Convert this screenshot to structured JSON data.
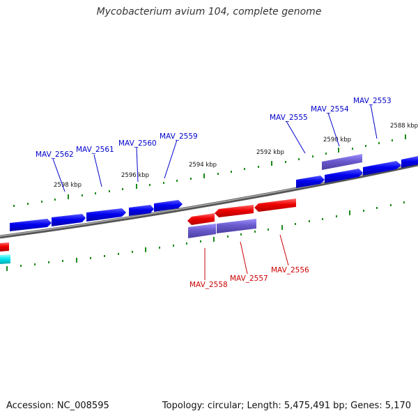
{
  "title": "Mycobacterium avium 104, complete genome",
  "footer": {
    "accession": "Accession: NC_008595",
    "summary": "Topology: circular; Length: 5,475,491 bp; Genes: 5,170"
  },
  "colors": {
    "forward_gene": "#0000ee",
    "reverse_gene": "#ee0000",
    "pseudo_gene": "#6a5acd",
    "other_feature": "#00e5ee",
    "backbone": "#808080",
    "tick": "#1a8a1a"
  },
  "ticks": {
    "upper": [
      "2598 kbp",
      "2596 kbp",
      "2594 kbp",
      "2592 kbp",
      "2590 kbp",
      "2588 kbp"
    ]
  },
  "genes": {
    "forward_labels": [
      "MAV_2562",
      "MAV_2561",
      "MAV_2560",
      "MAV_2559",
      "MAV_2555",
      "MAV_2554",
      "MAV_2553"
    ],
    "reverse_labels": [
      "MAV_2558",
      "MAV_2557",
      "MAV_2556"
    ]
  }
}
